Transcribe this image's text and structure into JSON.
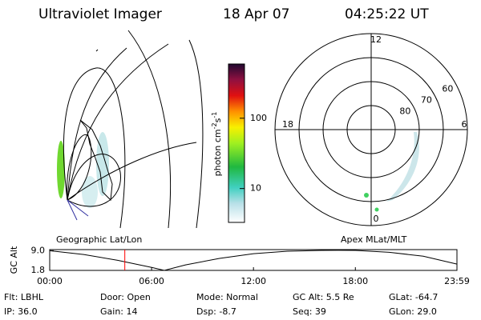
{
  "header": {
    "title": "Ultraviolet Imager",
    "date": "18 Apr 07",
    "time": "04:25:22 UT"
  },
  "map": {
    "label": "Geographic Lat/Lon"
  },
  "colorbar": {
    "label": [
      "photon cm",
      "-2",
      "s",
      "-1"
    ],
    "log": true,
    "lim": [
      3.3,
      590
    ],
    "ticks": [
      10,
      100
    ]
  },
  "polar": {
    "label": "Apex MLat/MLT",
    "rlim": [
      90,
      50
    ],
    "lat_ticks": [
      60,
      70,
      80
    ],
    "mlt_ticks": [
      12,
      18,
      6,
      0
    ]
  },
  "chart_data": {
    "type": "line",
    "ylabel": "GC Alt",
    "x": [
      0,
      2,
      4,
      6,
      6.75,
      8,
      10,
      12,
      14,
      16,
      17,
      18,
      20,
      22,
      23.983
    ],
    "series": [
      {
        "color": "#000000",
        "values": [
          9.0,
          7.6,
          5.5,
          2.9,
          1.8,
          3.8,
          6.2,
          7.9,
          8.8,
          9.1,
          9.15,
          9.1,
          8.4,
          7.0,
          4.1
        ]
      }
    ],
    "marker_x": 4.4228,
    "marker_color": "#ff0000",
    "xlim": [
      0,
      23.983
    ],
    "xticks": [
      {
        "value": 0,
        "label": "00:00"
      },
      {
        "value": 6,
        "label": "06:00"
      },
      {
        "value": 12,
        "label": "12:00"
      },
      {
        "value": 18,
        "label": "18:00"
      },
      {
        "value": 23.983,
        "label": "23:59"
      }
    ],
    "ylim": [
      1.8,
      9.4
    ],
    "yticks": [
      {
        "value": 9,
        "label": "9.0"
      },
      1.8
    ]
  },
  "footer": [
    [
      "Flt: LBHL",
      "Door: Open",
      "Mode: Normal",
      "GC Alt: 5.5 Re",
      "GLat: -64.7"
    ],
    [
      "IP: 36.0",
      "Gain: 14",
      "Dsp:  -8.7",
      "Seq: 39",
      "GLon:  29.0"
    ]
  ]
}
